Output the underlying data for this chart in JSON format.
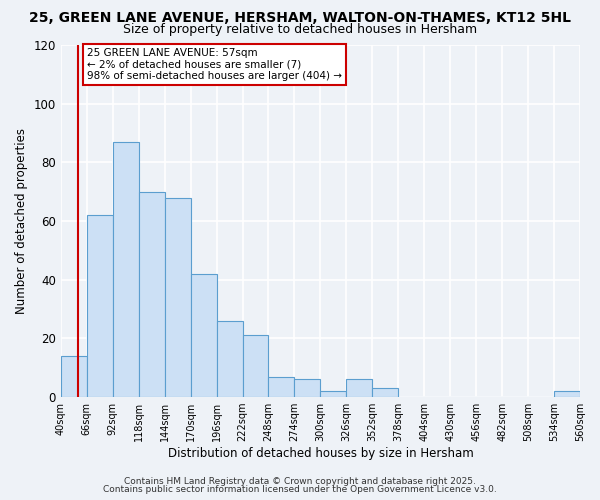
{
  "title1": "25, GREEN LANE AVENUE, HERSHAM, WALTON-ON-THAMES, KT12 5HL",
  "title2": "Size of property relative to detached houses in Hersham",
  "xlabel": "Distribution of detached houses by size in Hersham",
  "ylabel": "Number of detached properties",
  "bar_left_edges": [
    40,
    66,
    92,
    118,
    144,
    170,
    196,
    222,
    248,
    274,
    300,
    326,
    352,
    378,
    404,
    430,
    456,
    482,
    508,
    534
  ],
  "bar_heights": [
    14,
    62,
    87,
    70,
    68,
    42,
    26,
    21,
    7,
    6,
    2,
    6,
    3,
    0,
    0,
    0,
    0,
    0,
    0,
    2
  ],
  "bin_width": 26,
  "bar_color": "#cce0f5",
  "bar_edge_color": "#5b9ecf",
  "property_size": 57,
  "annotation_title": "25 GREEN LANE AVENUE: 57sqm",
  "annotation_line1": "← 2% of detached houses are smaller (7)",
  "annotation_line2": "98% of semi-detached houses are larger (404) →",
  "vline_color": "#cc0000",
  "annotation_box_edgecolor": "#cc0000",
  "ylim": [
    0,
    120
  ],
  "yticks": [
    0,
    20,
    40,
    60,
    80,
    100,
    120
  ],
  "xtick_labels": [
    "40sqm",
    "66sqm",
    "92sqm",
    "118sqm",
    "144sqm",
    "170sqm",
    "196sqm",
    "222sqm",
    "248sqm",
    "274sqm",
    "300sqm",
    "326sqm",
    "352sqm",
    "378sqm",
    "404sqm",
    "430sqm",
    "456sqm",
    "482sqm",
    "508sqm",
    "534sqm",
    "560sqm"
  ],
  "footnote1": "Contains HM Land Registry data © Crown copyright and database right 2025.",
  "footnote2": "Contains public sector information licensed under the Open Government Licence v3.0.",
  "bg_color": "#eef2f7",
  "plot_bg_color": "#eef2f7",
  "grid_color": "#ffffff",
  "title_fontsize": 10,
  "subtitle_fontsize": 9,
  "footnote_fontsize": 6.5
}
